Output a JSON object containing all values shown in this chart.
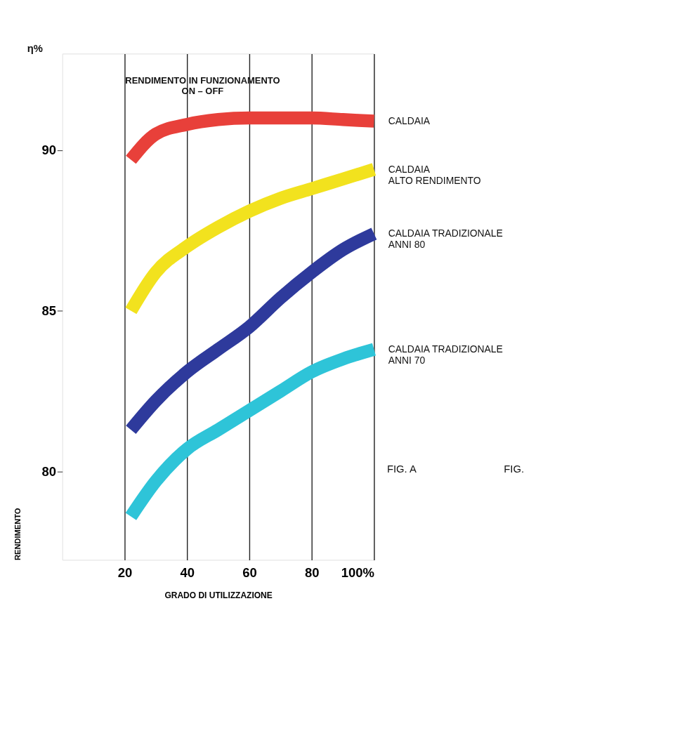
{
  "chart_data": {
    "type": "line",
    "title": "RENDIMENTO IN FUNZIONAMENTO\nON – OFF",
    "xlabel": "GRADO DI UTILIZZAZIONE",
    "ylabel": "RENDIMENTO",
    "annotations": [
      "η%",
      "FIG. A",
      "FIG."
    ],
    "x": [
      22,
      30,
      40,
      50,
      60,
      70,
      80,
      90,
      100
    ],
    "series": [
      {
        "name": "CALDAIA",
        "color": "#e8403a",
        "values": [
          89.7,
          90.5,
          90.8,
          90.95,
          91.0,
          91.0,
          91.0,
          90.95,
          90.9
        ]
      },
      {
        "name": "CALDAIA\nALTO RENDIMENTO",
        "color": "#f2e21e",
        "values": [
          85.0,
          86.2,
          87.0,
          87.6,
          88.1,
          88.5,
          88.8,
          89.1,
          89.4
        ]
      },
      {
        "name": "CALDAIA TRADIZIONALE\nANNI 80",
        "color": "#2e3a9c",
        "values": [
          81.3,
          82.2,
          83.1,
          83.8,
          84.5,
          85.4,
          86.2,
          86.9,
          87.4
        ]
      },
      {
        "name": "CALDAIA TRADIZIONALE\nANNI 70",
        "color": "#2ec4d8",
        "values": [
          78.6,
          79.7,
          80.7,
          81.3,
          81.9,
          82.5,
          83.1,
          83.5,
          83.8
        ]
      }
    ],
    "xlim": [
      0,
      100
    ],
    "ylim": [
      77.25,
      93
    ],
    "xticks": [
      20,
      40,
      60,
      80,
      {
        "value": 100,
        "label": "100%"
      }
    ],
    "yticks": [
      80,
      85,
      90
    ],
    "grid": "x",
    "marker": "none",
    "line_style": "solid"
  }
}
